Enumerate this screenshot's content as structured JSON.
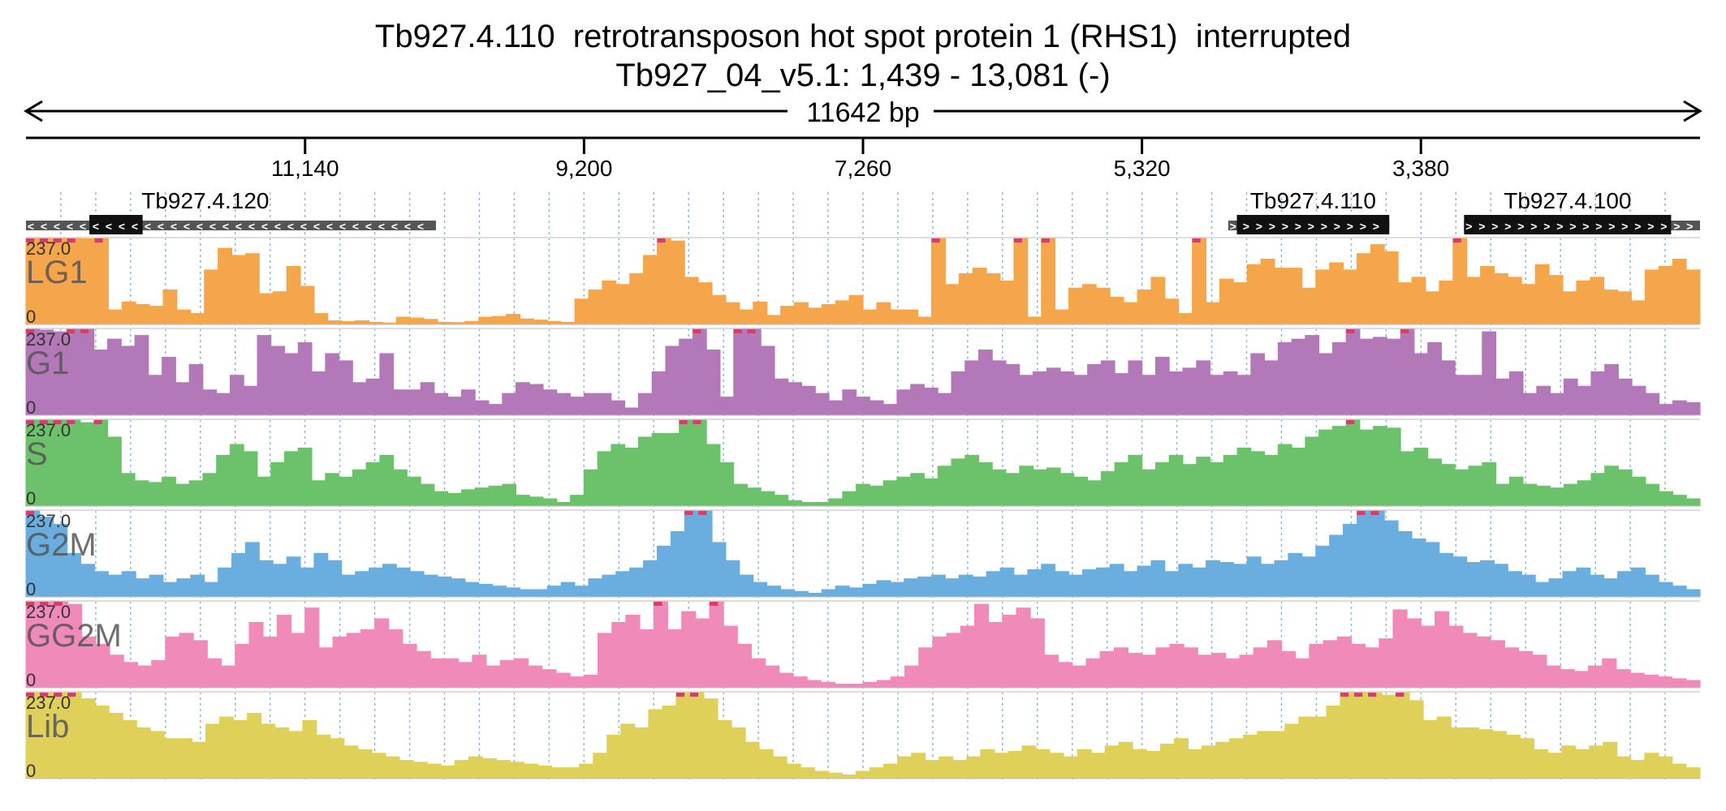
{
  "title": {
    "line1": "Tb927.4.110  retrotransposon hot spot protein 1 (RHS1)  interrupted",
    "line2": "Tb927_04_v5.1: 1,439 - 13,081 (-)"
  },
  "span_label": "11642 bp",
  "ruler": {
    "ticks": [
      {
        "label": "11,140",
        "position": 11140
      },
      {
        "label": "9,200",
        "position": 9200
      },
      {
        "label": "7,260",
        "position": 7260
      },
      {
        "label": "5,320",
        "position": 5320
      },
      {
        "label": "3,380",
        "position": 3380
      }
    ]
  },
  "genes": [
    {
      "name": "Tb927.4.120",
      "strand": "-",
      "region_start": 13081,
      "region_end": 10230,
      "cds_start": 12640,
      "cds_end": 12270
    },
    {
      "name": "Tb927.4.110",
      "strand": "+",
      "region_start": 4720,
      "region_end": 3600,
      "cds_start": 4660,
      "cds_end": 3600
    },
    {
      "name": "Tb927.4.100",
      "strand": "+",
      "region_start": 3080,
      "region_end": 1439,
      "cds_start": 3080,
      "cds_end": 1640
    }
  ],
  "chart_data": {
    "type": "area",
    "title": "Tb927.4.110  retrotransposon hot spot protein 1 (RHS1)  interrupted",
    "x_range": [
      13081,
      1439
    ],
    "y_range": [
      0,
      237.0
    ],
    "y_max_label": "237.0",
    "y_min_label": "0",
    "series": [
      {
        "name": "LG1",
        "color": "#f5a54a",
        "values": [
          237,
          237,
          237,
          237,
          236,
          237,
          40,
          62,
          55,
          50,
          95,
          40,
          30,
          150,
          210,
          190,
          195,
          85,
          90,
          160,
          105,
          30,
          10,
          8,
          10,
          6,
          4,
          20,
          18,
          14,
          6,
          5,
          8,
          20,
          22,
          28,
          15,
          12,
          8,
          6,
          70,
          95,
          120,
          110,
          140,
          190,
          237,
          230,
          130,
          115,
          80,
          60,
          40,
          62,
          25,
          50,
          60,
          45,
          55,
          65,
          80,
          40,
          60,
          40,
          40,
          20,
          237,
          110,
          140,
          155,
          140,
          120,
          237,
          20,
          237,
          40,
          100,
          110,
          100,
          75,
          60,
          95,
          130,
          70,
          30,
          237,
          60,
          125,
          115,
          165,
          180,
          155,
          155,
          100,
          150,
          170,
          150,
          195,
          220,
          200,
          115,
          130,
          90,
          120,
          237,
          130,
          160,
          140,
          130,
          110,
          165,
          135,
          90,
          120,
          130,
          95,
          90,
          65,
          150,
          160,
          180,
          150
        ]
      },
      {
        "name": "G1",
        "color": "#b278b8",
        "values": [
          237,
          235,
          230,
          237,
          237,
          180,
          210,
          190,
          220,
          110,
          160,
          90,
          140,
          70,
          60,
          110,
          80,
          220,
          190,
          170,
          200,
          120,
          170,
          150,
          90,
          100,
          170,
          70,
          70,
          90,
          60,
          50,
          70,
          40,
          30,
          60,
          90,
          85,
          70,
          60,
          50,
          60,
          60,
          40,
          20,
          60,
          120,
          190,
          210,
          237,
          180,
          50,
          237,
          237,
          190,
          100,
          90,
          80,
          60,
          40,
          70,
          50,
          40,
          30,
          70,
          85,
          75,
          60,
          120,
          150,
          180,
          150,
          140,
          110,
          120,
          130,
          120,
          110,
          140,
          150,
          115,
          150,
          110,
          160,
          120,
          130,
          150,
          110,
          120,
          110,
          170,
          150,
          200,
          210,
          220,
          170,
          200,
          237,
          210,
          215,
          210,
          237,
          170,
          200,
          150,
          110,
          110,
          230,
          100,
          120,
          60,
          80,
          60,
          100,
          80,
          120,
          140,
          100,
          80,
          60,
          30,
          40,
          35
        ]
      },
      {
        "name": "S",
        "color": "#6cc26b",
        "values": [
          237,
          237,
          237,
          237,
          230,
          237,
          190,
          90,
          70,
          65,
          80,
          60,
          70,
          90,
          140,
          170,
          150,
          80,
          120,
          150,
          160,
          70,
          90,
          80,
          100,
          120,
          140,
          100,
          80,
          60,
          40,
          35,
          45,
          50,
          55,
          60,
          30,
          25,
          20,
          10,
          30,
          100,
          150,
          170,
          160,
          190,
          200,
          200,
          237,
          237,
          170,
          120,
          60,
          50,
          40,
          30,
          15,
          10,
          10,
          20,
          40,
          60,
          55,
          70,
          80,
          90,
          75,
          110,
          130,
          140,
          120,
          100,
          90,
          110,
          100,
          105,
          90,
          80,
          70,
          95,
          120,
          140,
          100,
          120,
          140,
          115,
          135,
          120,
          140,
          160,
          150,
          140,
          170,
          160,
          190,
          210,
          220,
          237,
          210,
          220,
          215,
          150,
          160,
          130,
          115,
          100,
          110,
          120,
          60,
          80,
          60,
          55,
          50,
          60,
          70,
          90,
          110,
          100,
          80,
          60,
          40,
          30,
          20
        ]
      },
      {
        "name": "G2M",
        "color": "#6aaee0",
        "values": [
          237,
          220,
          200,
          120,
          90,
          70,
          60,
          70,
          50,
          60,
          40,
          50,
          60,
          40,
          80,
          120,
          150,
          100,
          90,
          110,
          80,
          120,
          100,
          60,
          70,
          80,
          90,
          80,
          70,
          60,
          55,
          50,
          40,
          35,
          30,
          25,
          20,
          20,
          30,
          40,
          30,
          50,
          60,
          70,
          80,
          100,
          140,
          180,
          237,
          237,
          150,
          100,
          60,
          40,
          30,
          20,
          15,
          10,
          20,
          30,
          25,
          35,
          45,
          40,
          50,
          55,
          60,
          50,
          60,
          55,
          70,
          80,
          60,
          75,
          90,
          70,
          60,
          75,
          80,
          90,
          70,
          85,
          100,
          70,
          90,
          80,
          100,
          95,
          90,
          110,
          90,
          100,
          120,
          110,
          140,
          170,
          200,
          237,
          237,
          210,
          180,
          160,
          150,
          120,
          110,
          95,
          100,
          90,
          70,
          60,
          40,
          50,
          70,
          80,
          60,
          50,
          70,
          80,
          60,
          40,
          30,
          20
        ]
      },
      {
        "name": "GG2M",
        "color": "#f08bb9",
        "values": [
          237,
          237,
          237,
          230,
          140,
          120,
          90,
          70,
          60,
          75,
          140,
          150,
          130,
          80,
          60,
          120,
          180,
          140,
          200,
          150,
          220,
          110,
          140,
          150,
          160,
          190,
          160,
          120,
          100,
          80,
          80,
          70,
          90,
          60,
          75,
          80,
          60,
          50,
          40,
          30,
          35,
          150,
          180,
          200,
          160,
          237,
          160,
          210,
          190,
          237,
          170,
          120,
          80,
          60,
          40,
          30,
          20,
          15,
          10,
          10,
          15,
          20,
          30,
          60,
          110,
          140,
          150,
          170,
          230,
          180,
          200,
          220,
          190,
          90,
          70,
          60,
          80,
          100,
          110,
          95,
          90,
          110,
          120,
          110,
          90,
          95,
          80,
          90,
          110,
          130,
          100,
          80,
          120,
          130,
          140,
          120,
          110,
          135,
          215,
          190,
          170,
          210,
          170,
          150,
          140,
          130,
          110,
          100,
          90,
          60,
          50,
          45,
          60,
          80,
          50,
          40,
          35,
          30,
          25,
          20
        ]
      },
      {
        "name": "Lib",
        "color": "#dfd05a",
        "values": [
          237,
          237,
          237,
          237,
          220,
          200,
          180,
          160,
          140,
          130,
          110,
          110,
          100,
          150,
          170,
          160,
          180,
          150,
          140,
          130,
          160,
          120,
          110,
          90,
          80,
          70,
          60,
          50,
          45,
          40,
          35,
          50,
          60,
          55,
          50,
          45,
          40,
          35,
          30,
          30,
          40,
          70,
          120,
          150,
          140,
          190,
          200,
          237,
          237,
          220,
          160,
          140,
          100,
          80,
          60,
          40,
          30,
          20,
          15,
          10,
          20,
          30,
          40,
          60,
          70,
          50,
          60,
          50,
          60,
          80,
          70,
          75,
          90,
          80,
          70,
          60,
          80,
          70,
          90,
          100,
          80,
          75,
          95,
          110,
          80,
          90,
          100,
          110,
          120,
          130,
          130,
          150,
          170,
          170,
          200,
          237,
          237,
          237,
          230,
          237,
          215,
          160,
          170,
          140,
          140,
          135,
          130,
          120,
          110,
          80,
          70,
          90,
          80,
          90,
          100,
          60,
          50,
          70,
          60,
          40,
          30
        ]
      }
    ]
  }
}
